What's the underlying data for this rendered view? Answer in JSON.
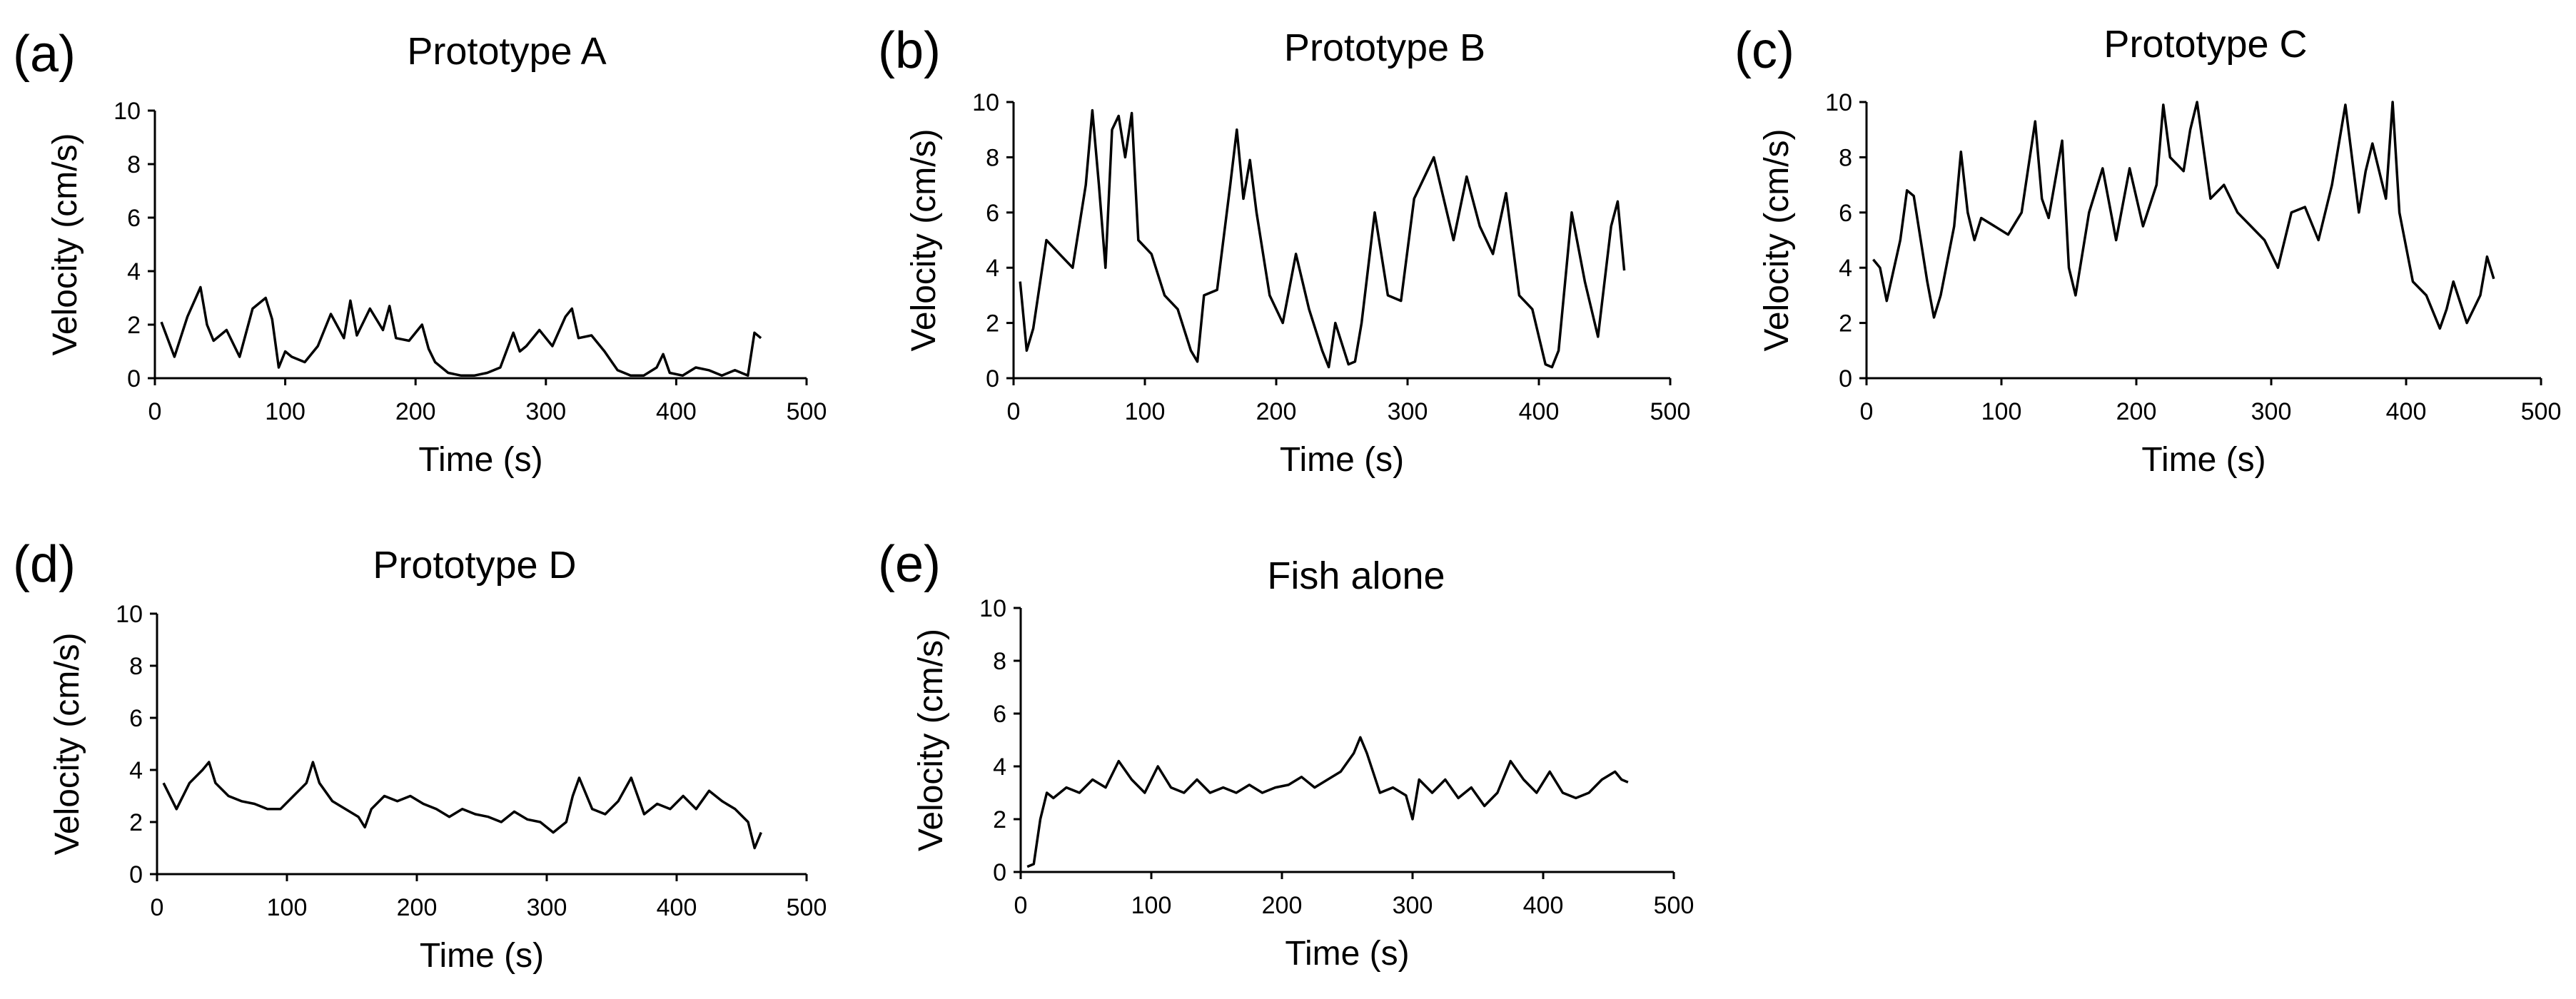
{
  "chart_data": [
    {
      "type": "line",
      "panel": "(a)",
      "title": "Prototype A",
      "xlabel": "Time (s)",
      "ylabel": "Velocity (cm/s)",
      "xlim": [
        0,
        500
      ],
      "ylim": [
        0,
        10
      ],
      "xticks": [
        0,
        100,
        200,
        300,
        400,
        500
      ],
      "yticks": [
        0,
        2,
        4,
        6,
        8,
        10
      ],
      "grid": false,
      "series": [
        {
          "name": "Prototype A",
          "x": [
            5,
            15,
            25,
            35,
            40,
            45,
            55,
            65,
            75,
            85,
            90,
            95,
            100,
            105,
            115,
            125,
            135,
            145,
            150,
            155,
            165,
            175,
            180,
            185,
            195,
            205,
            210,
            215,
            225,
            235,
            245,
            255,
            265,
            275,
            280,
            285,
            295,
            305,
            315,
            320,
            325,
            335,
            345,
            355,
            365,
            375,
            385,
            390,
            395,
            405,
            415,
            425,
            435,
            445,
            455,
            460,
            465
          ],
          "y": [
            2.1,
            0.8,
            2.3,
            3.4,
            2.0,
            1.4,
            1.8,
            0.8,
            2.6,
            3.0,
            2.2,
            0.4,
            1.0,
            0.8,
            0.6,
            1.2,
            2.4,
            1.5,
            2.9,
            1.6,
            2.6,
            1.8,
            2.7,
            1.5,
            1.4,
            2.0,
            1.1,
            0.6,
            0.2,
            0.1,
            0.1,
            0.2,
            0.4,
            1.7,
            1.0,
            1.2,
            1.8,
            1.2,
            2.3,
            2.6,
            1.5,
            1.6,
            1.0,
            0.3,
            0.1,
            0.1,
            0.4,
            0.9,
            0.2,
            0.1,
            0.4,
            0.3,
            0.1,
            0.3,
            0.1,
            1.7,
            1.5
          ]
        }
      ]
    },
    {
      "type": "line",
      "panel": "(b)",
      "title": "Prototype B",
      "xlabel": "Time (s)",
      "ylabel": "Velocity (cm/s)",
      "xlim": [
        0,
        500
      ],
      "ylim": [
        0,
        10
      ],
      "xticks": [
        0,
        100,
        200,
        300,
        400,
        500
      ],
      "yticks": [
        0,
        2,
        4,
        6,
        8,
        10
      ],
      "grid": false,
      "series": [
        {
          "name": "Prototype B",
          "x": [
            5,
            10,
            15,
            25,
            35,
            45,
            55,
            60,
            65,
            70,
            75,
            80,
            85,
            90,
            95,
            105,
            115,
            125,
            135,
            140,
            145,
            155,
            165,
            170,
            175,
            180,
            185,
            195,
            205,
            215,
            225,
            235,
            240,
            245,
            255,
            260,
            265,
            275,
            285,
            295,
            305,
            315,
            320,
            325,
            335,
            345,
            355,
            365,
            375,
            385,
            395,
            405,
            410,
            415,
            425,
            435,
            445,
            455,
            460,
            465
          ],
          "y": [
            3.5,
            1.0,
            1.8,
            5.0,
            4.5,
            4.0,
            7.0,
            9.7,
            7.0,
            4.0,
            9.0,
            9.5,
            8.0,
            9.6,
            5.0,
            4.5,
            3.0,
            2.5,
            1.0,
            0.6,
            3.0,
            3.2,
            7.0,
            9.0,
            6.5,
            7.9,
            6.0,
            3.0,
            2.0,
            4.5,
            2.5,
            1.0,
            0.4,
            2.0,
            0.5,
            0.6,
            2.0,
            6.0,
            3.0,
            2.8,
            6.5,
            7.5,
            8.0,
            7.0,
            5.0,
            7.3,
            5.5,
            4.5,
            6.7,
            3.0,
            2.5,
            0.5,
            0.4,
            1.0,
            6.0,
            3.5,
            1.5,
            5.5,
            6.4,
            3.9
          ]
        }
      ]
    },
    {
      "type": "line",
      "panel": "(c)",
      "title": "Prototype C",
      "xlabel": "Time (s)",
      "ylabel": "Velocity (cm/s)",
      "xlim": [
        0,
        500
      ],
      "ylim": [
        0,
        10
      ],
      "xticks": [
        0,
        100,
        200,
        300,
        400,
        500
      ],
      "yticks": [
        0,
        2,
        4,
        6,
        8,
        10
      ],
      "grid": false,
      "series": [
        {
          "name": "Prototype C",
          "x": [
            5,
            10,
            15,
            25,
            30,
            35,
            45,
            50,
            55,
            65,
            70,
            75,
            80,
            85,
            95,
            105,
            115,
            125,
            130,
            135,
            145,
            150,
            155,
            165,
            175,
            185,
            195,
            205,
            215,
            220,
            225,
            235,
            240,
            245,
            255,
            265,
            275,
            285,
            295,
            305,
            315,
            325,
            335,
            345,
            355,
            365,
            370,
            375,
            385,
            390,
            395,
            405,
            415,
            425,
            430,
            435,
            445,
            455,
            460,
            465
          ],
          "y": [
            4.3,
            4.0,
            2.8,
            5.0,
            6.8,
            6.6,
            3.5,
            2.2,
            3.0,
            5.5,
            8.2,
            6.0,
            5.0,
            5.8,
            5.5,
            5.2,
            6.0,
            9.3,
            6.5,
            5.8,
            8.6,
            4.0,
            3.0,
            6.0,
            7.6,
            5.0,
            7.6,
            5.5,
            7.0,
            9.9,
            8.0,
            7.5,
            9.0,
            10.0,
            6.5,
            7.0,
            6.0,
            5.5,
            5.0,
            4.0,
            6.0,
            6.2,
            5.0,
            7.0,
            9.9,
            6.0,
            7.5,
            8.5,
            6.5,
            10.0,
            6.0,
            3.5,
            3.0,
            1.8,
            2.5,
            3.5,
            2.0,
            3.0,
            4.4,
            3.6
          ]
        }
      ]
    },
    {
      "type": "line",
      "panel": "(d)",
      "title": "Prototype D",
      "xlabel": "Time (s)",
      "ylabel": "Velocity (cm/s)",
      "xlim": [
        0,
        500
      ],
      "ylim": [
        0,
        10
      ],
      "xticks": [
        0,
        100,
        200,
        300,
        400,
        500
      ],
      "yticks": [
        0,
        2,
        4,
        6,
        8,
        10
      ],
      "grid": false,
      "series": [
        {
          "name": "Prototype D",
          "x": [
            5,
            15,
            25,
            35,
            40,
            45,
            55,
            65,
            75,
            85,
            95,
            105,
            115,
            120,
            125,
            135,
            145,
            155,
            160,
            165,
            175,
            185,
            195,
            205,
            215,
            225,
            235,
            245,
            255,
            265,
            275,
            285,
            295,
            305,
            315,
            320,
            325,
            335,
            345,
            355,
            365,
            375,
            385,
            395,
            405,
            415,
            425,
            435,
            445,
            455,
            460,
            465
          ],
          "y": [
            3.5,
            2.5,
            3.5,
            4.0,
            4.3,
            3.5,
            3.0,
            2.8,
            2.7,
            2.5,
            2.5,
            3.0,
            3.5,
            4.3,
            3.5,
            2.8,
            2.5,
            2.2,
            1.8,
            2.5,
            3.0,
            2.8,
            3.0,
            2.7,
            2.5,
            2.2,
            2.5,
            2.3,
            2.2,
            2.0,
            2.4,
            2.1,
            2.0,
            1.6,
            2.0,
            3.0,
            3.7,
            2.5,
            2.3,
            2.8,
            3.7,
            2.3,
            2.7,
            2.5,
            3.0,
            2.5,
            3.2,
            2.8,
            2.5,
            2.0,
            1.0,
            1.6
          ]
        }
      ]
    },
    {
      "type": "line",
      "panel": "(e)",
      "title": "Fish alone",
      "xlabel": "Time (s)",
      "ylabel": "Velocity (cm/s)",
      "xlim": [
        0,
        500
      ],
      "ylim": [
        0,
        10
      ],
      "xticks": [
        0,
        100,
        200,
        300,
        400,
        500
      ],
      "yticks": [
        0,
        2,
        4,
        6,
        8,
        10
      ],
      "grid": false,
      "series": [
        {
          "name": "Fish alone",
          "x": [
            5,
            10,
            15,
            20,
            25,
            35,
            45,
            55,
            65,
            75,
            85,
            95,
            105,
            115,
            125,
            135,
            145,
            155,
            165,
            175,
            185,
            195,
            205,
            215,
            225,
            235,
            245,
            255,
            260,
            265,
            275,
            285,
            295,
            300,
            305,
            315,
            325,
            335,
            345,
            355,
            365,
            375,
            385,
            395,
            405,
            415,
            425,
            435,
            445,
            455,
            460,
            465
          ],
          "y": [
            0.2,
            0.3,
            2.0,
            3.0,
            2.8,
            3.2,
            3.0,
            3.5,
            3.2,
            4.2,
            3.5,
            3.0,
            4.0,
            3.2,
            3.0,
            3.5,
            3.0,
            3.2,
            3.0,
            3.3,
            3.0,
            3.2,
            3.3,
            3.6,
            3.2,
            3.5,
            3.8,
            4.5,
            5.1,
            4.5,
            3.0,
            3.2,
            2.9,
            2.0,
            3.5,
            3.0,
            3.5,
            2.8,
            3.2,
            2.5,
            3.0,
            4.2,
            3.5,
            3.0,
            3.8,
            3.0,
            2.8,
            3.0,
            3.5,
            3.8,
            3.5,
            3.4
          ]
        }
      ]
    }
  ]
}
